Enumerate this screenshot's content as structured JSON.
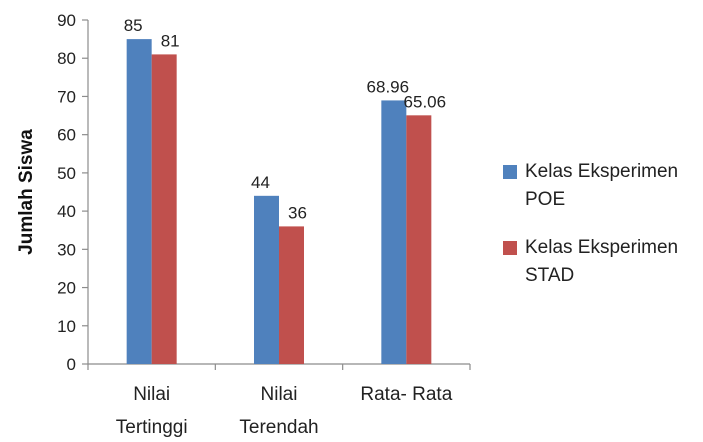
{
  "chart_data": {
    "type": "bar",
    "title": "",
    "xlabel": "",
    "ylabel": "Jumlah Siswa",
    "ylim": [
      0,
      90
    ],
    "yticks": [
      0,
      10,
      20,
      30,
      40,
      50,
      60,
      70,
      80,
      90
    ],
    "grid": false,
    "legend_position": "right",
    "categories": [
      [
        "Nilai",
        "Tertinggi"
      ],
      [
        "Nilai",
        "Terendah"
      ],
      [
        "Rata- Rata"
      ]
    ],
    "series": [
      {
        "name": "Kelas Eksperimen POE",
        "color": "#4F81BD",
        "values": [
          85,
          44,
          68.96
        ],
        "labels": [
          "85",
          "44",
          "68.96"
        ]
      },
      {
        "name": "Kelas Eksperimen STAD",
        "color": "#C0504D",
        "values": [
          81,
          36,
          65.06
        ],
        "labels": [
          "81",
          "36",
          "65.06"
        ]
      }
    ]
  }
}
